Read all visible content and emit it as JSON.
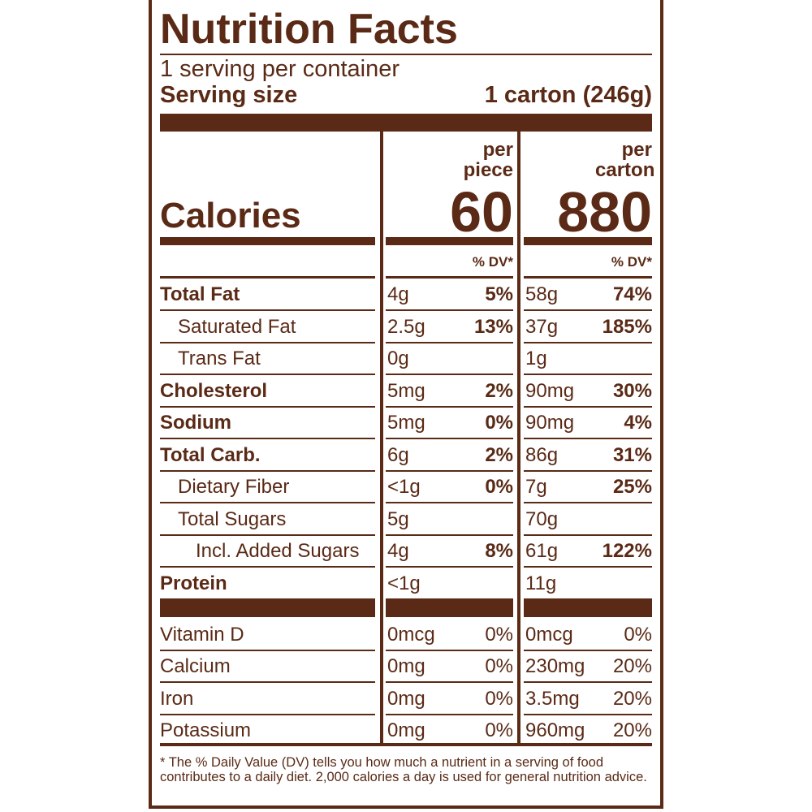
{
  "label": {
    "title": "Nutrition Facts",
    "servings": "1 serving per container",
    "serving_size": {
      "label": "Serving size",
      "value": "1 carton (246g)"
    },
    "calories": {
      "label": "Calories",
      "columns": [
        {
          "header": "per piece",
          "value": "60"
        },
        {
          "header": "per carton",
          "value": "880"
        }
      ]
    },
    "dv_headers": [
      "% DV*",
      "% DV*"
    ],
    "nutrients": [
      {
        "name": "Total Fat",
        "bold": true,
        "indent": 0,
        "piece": {
          "amount": "4g",
          "dv": "5%"
        },
        "carton": {
          "amount": "58g",
          "dv": "74%"
        }
      },
      {
        "name": "Saturated Fat",
        "bold": false,
        "indent": 1,
        "piece": {
          "amount": "2.5g",
          "dv": "13%"
        },
        "carton": {
          "amount": "37g",
          "dv": "185%"
        }
      },
      {
        "name": "Trans Fat",
        "bold": false,
        "indent": 1,
        "piece": {
          "amount": "0g"
        },
        "carton": {
          "amount": "1g"
        }
      },
      {
        "name": "Cholesterol",
        "bold": true,
        "indent": 0,
        "piece": {
          "amount": "5mg",
          "dv": "2%"
        },
        "carton": {
          "amount": "90mg",
          "dv": "30%"
        }
      },
      {
        "name": "Sodium",
        "bold": true,
        "indent": 0,
        "piece": {
          "amount": "5mg",
          "dv": "0%"
        },
        "carton": {
          "amount": "90mg",
          "dv": "4%"
        }
      },
      {
        "name": "Total Carb.",
        "bold": true,
        "indent": 0,
        "piece": {
          "amount": "6g",
          "dv": "2%"
        },
        "carton": {
          "amount": "86g",
          "dv": "31%"
        }
      },
      {
        "name": "Dietary Fiber",
        "bold": false,
        "indent": 1,
        "piece": {
          "amount": "<1g",
          "dv": "0%"
        },
        "carton": {
          "amount": "7g",
          "dv": "25%"
        }
      },
      {
        "name": "Total Sugars",
        "bold": false,
        "indent": 1,
        "piece": {
          "amount": "5g"
        },
        "carton": {
          "amount": "70g"
        }
      },
      {
        "name": "Incl. Added Sugars",
        "bold": false,
        "indent": 2,
        "piece": {
          "amount": "4g",
          "dv": "8%"
        },
        "carton": {
          "amount": "61g",
          "dv": "122%"
        }
      },
      {
        "name": "Protein",
        "bold": true,
        "indent": 0,
        "piece": {
          "amount": "<1g"
        },
        "carton": {
          "amount": "11g"
        }
      }
    ],
    "vitamins": [
      {
        "name": "Vitamin D",
        "piece": {
          "amount": "0mcg",
          "dv": "0%"
        },
        "carton": {
          "amount": "0mcg",
          "dv": "0%"
        }
      },
      {
        "name": "Calcium",
        "piece": {
          "amount": "0mg",
          "dv": "0%"
        },
        "carton": {
          "amount": "230mg",
          "dv": "20%"
        }
      },
      {
        "name": "Iron",
        "piece": {
          "amount": "0mg",
          "dv": "0%"
        },
        "carton": {
          "amount": "3.5mg",
          "dv": "20%"
        }
      },
      {
        "name": "Potassium",
        "piece": {
          "amount": "0mg",
          "dv": "0%"
        },
        "carton": {
          "amount": "960mg",
          "dv": "20%"
        }
      }
    ],
    "footnote": "* The % Daily Value (DV) tells you how much a nutrient in a serving of food contributes to a daily diet. 2,000 calories a day is used for general nutrition advice."
  }
}
